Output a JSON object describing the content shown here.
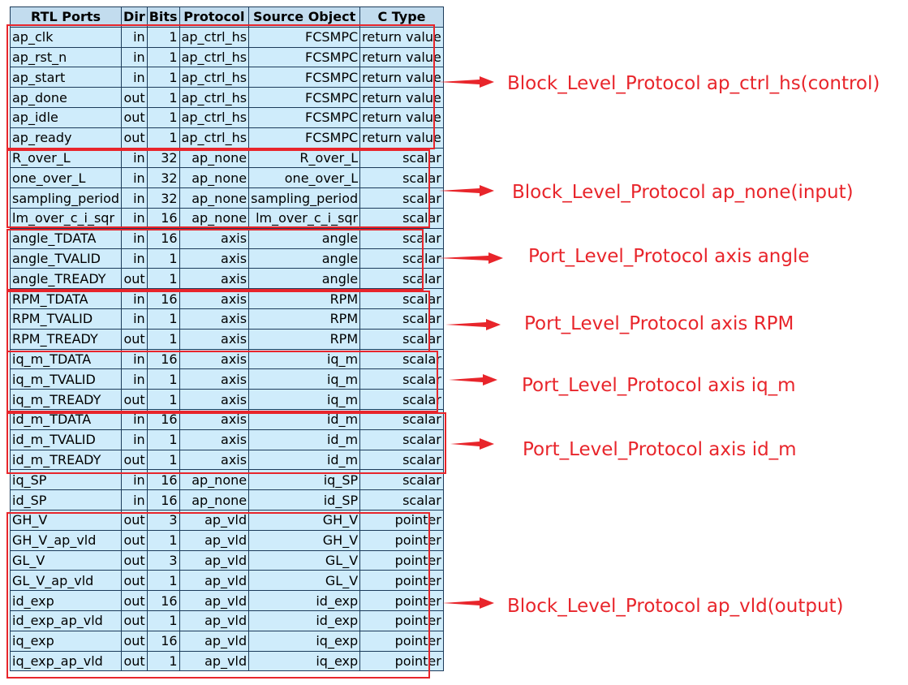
{
  "table": {
    "headers": [
      "RTL Ports",
      "Dir",
      "Bits",
      "Protocol",
      "Source Object",
      "C Type"
    ],
    "rows": [
      [
        "ap_clk",
        "in",
        "1",
        "ap_ctrl_hs",
        "FCSMPC",
        "return value"
      ],
      [
        "ap_rst_n",
        "in",
        "1",
        "ap_ctrl_hs",
        "FCSMPC",
        "return value"
      ],
      [
        "ap_start",
        "in",
        "1",
        "ap_ctrl_hs",
        "FCSMPC",
        "return value"
      ],
      [
        "ap_done",
        "out",
        "1",
        "ap_ctrl_hs",
        "FCSMPC",
        "return value"
      ],
      [
        "ap_idle",
        "out",
        "1",
        "ap_ctrl_hs",
        "FCSMPC",
        "return value"
      ],
      [
        "ap_ready",
        "out",
        "1",
        "ap_ctrl_hs",
        "FCSMPC",
        "return value"
      ],
      [
        "R_over_L",
        "in",
        "32",
        "ap_none",
        "R_over_L",
        "scalar"
      ],
      [
        "one_over_L",
        "in",
        "32",
        "ap_none",
        "one_over_L",
        "scalar"
      ],
      [
        "sampling_period",
        "in",
        "32",
        "ap_none",
        "sampling_period",
        "scalar"
      ],
      [
        "lm_over_c_i_sqr",
        "in",
        "16",
        "ap_none",
        "lm_over_c_i_sqr",
        "scalar"
      ],
      [
        "angle_TDATA",
        "in",
        "16",
        "axis",
        "angle",
        "scalar"
      ],
      [
        "angle_TVALID",
        "in",
        "1",
        "axis",
        "angle",
        "scalar"
      ],
      [
        "angle_TREADY",
        "out",
        "1",
        "axis",
        "angle",
        "scalar"
      ],
      [
        "RPM_TDATA",
        "in",
        "16",
        "axis",
        "RPM",
        "scalar"
      ],
      [
        "RPM_TVALID",
        "in",
        "1",
        "axis",
        "RPM",
        "scalar"
      ],
      [
        "RPM_TREADY",
        "out",
        "1",
        "axis",
        "RPM",
        "scalar"
      ],
      [
        "iq_m_TDATA",
        "in",
        "16",
        "axis",
        "iq_m",
        "scalar"
      ],
      [
        "iq_m_TVALID",
        "in",
        "1",
        "axis",
        "iq_m",
        "scalar"
      ],
      [
        "iq_m_TREADY",
        "out",
        "1",
        "axis",
        "iq_m",
        "scalar"
      ],
      [
        "id_m_TDATA",
        "in",
        "16",
        "axis",
        "id_m",
        "scalar"
      ],
      [
        "id_m_TVALID",
        "in",
        "1",
        "axis",
        "id_m",
        "scalar"
      ],
      [
        "id_m_TREADY",
        "out",
        "1",
        "axis",
        "id_m",
        "scalar"
      ],
      [
        "iq_SP",
        "in",
        "16",
        "ap_none",
        "iq_SP",
        "scalar"
      ],
      [
        "id_SP",
        "in",
        "16",
        "ap_none",
        "id_SP",
        "scalar"
      ],
      [
        "GH_V",
        "out",
        "3",
        "ap_vld",
        "GH_V",
        "pointer"
      ],
      [
        "GH_V_ap_vld",
        "out",
        "1",
        "ap_vld",
        "GH_V",
        "pointer"
      ],
      [
        "GL_V",
        "out",
        "3",
        "ap_vld",
        "GL_V",
        "pointer"
      ],
      [
        "GL_V_ap_vld",
        "out",
        "1",
        "ap_vld",
        "GL_V",
        "pointer"
      ],
      [
        "id_exp",
        "out",
        "16",
        "ap_vld",
        "id_exp",
        "pointer"
      ],
      [
        "id_exp_ap_vld",
        "out",
        "1",
        "ap_vld",
        "id_exp",
        "pointer"
      ],
      [
        "iq_exp",
        "out",
        "16",
        "ap_vld",
        "iq_exp",
        "pointer"
      ],
      [
        "iq_exp_ap_vld",
        "out",
        "1",
        "ap_vld",
        "iq_exp",
        "pointer"
      ]
    ]
  },
  "annotations": [
    {
      "label": "Block_Level_Protocol ap_ctrl_hs(control)"
    },
    {
      "label": "Block_Level_Protocol ap_none(input)"
    },
    {
      "label": "Port_Level_Protocol axis angle"
    },
    {
      "label": "Port_Level_Protocol axis RPM"
    },
    {
      "label": "Port_Level_Protocol axis iq_m"
    },
    {
      "label": "Port_Level_Protocol axis id_m"
    },
    {
      "label": "Block_Level_Protocol ap_vld(output)"
    }
  ],
  "colors": {
    "annotation": "#e8252b",
    "header_bg": "#c2dcee",
    "cell_bg": "#cfecfb",
    "border": "#1c3b5a"
  }
}
